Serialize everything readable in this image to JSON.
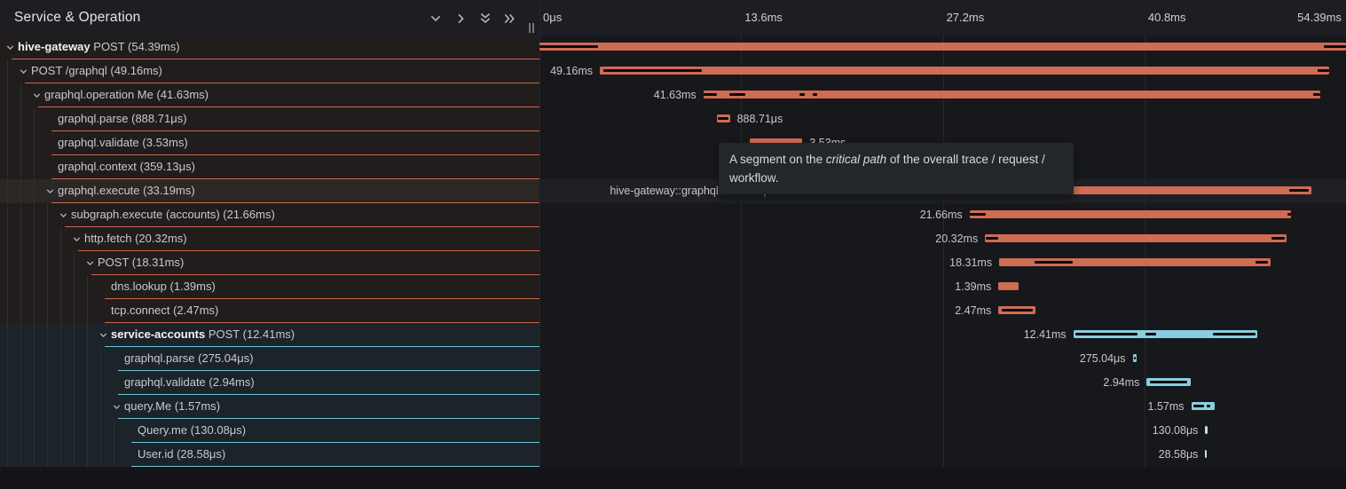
{
  "header": {
    "title": "Service & Operation",
    "buttons": [
      {
        "name": "collapse-one-icon",
        "glyph": "chevron-down"
      },
      {
        "name": "expand-one-icon",
        "glyph": "chevron-right"
      },
      {
        "name": "collapse-all-icon",
        "glyph": "double-chevron-down"
      },
      {
        "name": "expand-all-icon",
        "glyph": "double-chevron-right"
      }
    ]
  },
  "axis": {
    "total_ms": 54.39,
    "ticks": [
      {
        "label": "0μs",
        "ms": 0
      },
      {
        "label": "13.6ms",
        "ms": 13.6
      },
      {
        "label": "27.2ms",
        "ms": 27.2
      },
      {
        "label": "40.8ms",
        "ms": 40.8
      },
      {
        "label": "54.39ms",
        "ms": 54.39,
        "align": "right"
      }
    ]
  },
  "tooltip": {
    "before": "A segment on the ",
    "em": "critical path",
    "after": " of the overall trace / request / workflow."
  },
  "colors": {
    "bar_orange": "#d06b54",
    "bar_blue": "#8acde1",
    "tick_blue": "#b9e2ef",
    "border_orange": "#c9674f",
    "border_blue": "#6fc2da",
    "row_orange_bg": "#201d1c",
    "row_blue_bg": "#1c2329",
    "row_highlight_left_bg": "#2b2724",
    "row_highlight_right_bg": "#1e2025",
    "critical": "#0a0a0a",
    "guide": "#2d2e33",
    "icon": "#b5b7bd",
    "chevron": "#a8aab0"
  },
  "rows": [
    {
      "service": "hive-gateway",
      "name": "POST",
      "duration": "(54.39ms)",
      "depth": 0,
      "expandable": true,
      "theme": "orange",
      "bar": {
        "start_ms": 0,
        "duration_ms": 54.39,
        "label": "",
        "label_side": "none",
        "critical": [
          [
            0,
            0.073
          ],
          [
            0.973,
            1
          ]
        ]
      }
    },
    {
      "service": "",
      "name": "POST /graphql",
      "duration": "(49.16ms)",
      "depth": 1,
      "expandable": true,
      "theme": "orange",
      "bar": {
        "start_ms": 4.07,
        "duration_ms": 49.16,
        "label": "49.16ms",
        "label_side": "left",
        "critical": [
          [
            0.005,
            0.14
          ],
          [
            0.985,
            1
          ]
        ]
      }
    },
    {
      "service": "",
      "name": "graphql.operation Me",
      "duration": "(41.63ms)",
      "depth": 2,
      "expandable": true,
      "theme": "orange",
      "bar": {
        "start_ms": 11.05,
        "duration_ms": 41.63,
        "label": "41.63ms",
        "label_side": "left",
        "critical": [
          [
            0,
            0.022
          ],
          [
            0.042,
            0.068
          ],
          [
            0.155,
            0.165
          ],
          [
            0.177,
            0.185
          ],
          [
            0.988,
            1
          ]
        ]
      }
    },
    {
      "service": "",
      "name": "graphql.parse",
      "duration": "(888.71μs)",
      "depth": 3,
      "expandable": false,
      "theme": "orange",
      "bar": {
        "start_ms": 11.95,
        "duration_ms": 0.889,
        "label": "888.71μs",
        "label_side": "right",
        "critical": [
          [
            0.12,
            0.88
          ]
        ]
      }
    },
    {
      "service": "",
      "name": "graphql.validate",
      "duration": "(3.53ms)",
      "depth": 3,
      "expandable": false,
      "theme": "orange",
      "bar": {
        "start_ms": 14.2,
        "duration_ms": 3.53,
        "label": "3.53ms",
        "label_side": "right",
        "critical": []
      }
    },
    {
      "service": "",
      "name": "graphql.context",
      "duration": "(359.13μs)",
      "depth": 3,
      "expandable": false,
      "theme": "orange",
      "bar": {
        "start_ms": 17.73,
        "duration_ms": 0.359,
        "label": "359.13μs",
        "label_side": "right",
        "critical": []
      }
    },
    {
      "service": "",
      "name": "graphql.execute",
      "duration": "(33.19ms)",
      "depth": 3,
      "expandable": true,
      "theme": "orange",
      "highlighted": true,
      "bar": {
        "start_ms": 18.85,
        "duration_ms": 33.19,
        "label": "hive-gateway::graphql.execute | 33.19ms",
        "label_side": "left",
        "critical": [
          [
            0,
            0.3
          ],
          [
            0.955,
            0.995
          ]
        ]
      }
    },
    {
      "service": "",
      "name": "subgraph.execute (accounts)",
      "duration": "(21.66ms)",
      "depth": 4,
      "expandable": true,
      "theme": "orange",
      "bar": {
        "start_ms": 29.0,
        "duration_ms": 21.66,
        "label": "21.66ms",
        "label_side": "left",
        "critical": [
          [
            0.002,
            0.05
          ],
          [
            0.99,
            1
          ]
        ]
      }
    },
    {
      "service": "",
      "name": "http.fetch",
      "duration": "(20.32ms)",
      "depth": 5,
      "expandable": true,
      "theme": "orange",
      "bar": {
        "start_ms": 30.05,
        "duration_ms": 20.32,
        "label": "20.32ms",
        "label_side": "left",
        "critical": [
          [
            0.002,
            0.045
          ],
          [
            0.95,
            0.995
          ]
        ]
      }
    },
    {
      "service": "",
      "name": "POST",
      "duration": "(18.31ms)",
      "depth": 6,
      "expandable": true,
      "theme": "orange",
      "bar": {
        "start_ms": 31.0,
        "duration_ms": 18.31,
        "label": "18.31ms",
        "label_side": "left",
        "critical": [
          [
            0.13,
            0.27
          ],
          [
            0.945,
            0.99
          ]
        ]
      }
    },
    {
      "service": "",
      "name": "dns.lookup",
      "duration": "(1.39ms)",
      "depth": 7,
      "expandable": false,
      "theme": "orange",
      "bar": {
        "start_ms": 30.95,
        "duration_ms": 1.39,
        "label": "1.39ms",
        "label_side": "left",
        "critical": []
      }
    },
    {
      "service": "",
      "name": "tcp.connect",
      "duration": "(2.47ms)",
      "depth": 7,
      "expandable": false,
      "theme": "orange",
      "bar": {
        "start_ms": 30.95,
        "duration_ms": 2.47,
        "label": "2.47ms",
        "label_side": "left",
        "critical": [
          [
            0.08,
            0.95
          ]
        ]
      }
    },
    {
      "service": "service-accounts",
      "name": "POST",
      "duration": "(12.41ms)",
      "depth": 7,
      "expandable": true,
      "theme": "blue",
      "bar": {
        "start_ms": 36.0,
        "duration_ms": 12.41,
        "label": "12.41ms",
        "label_side": "left",
        "critical": [
          [
            0.01,
            0.35
          ],
          [
            0.39,
            0.45
          ],
          [
            0.76,
            0.99
          ]
        ]
      }
    },
    {
      "service": "",
      "name": "graphql.parse",
      "duration": "(275.04μs)",
      "depth": 8,
      "expandable": false,
      "theme": "blue",
      "bar": {
        "start_ms": 40.0,
        "duration_ms": 0.275,
        "label": "275.04μs",
        "label_side": "left",
        "critical": [
          [
            0.3,
            0.7
          ]
        ]
      }
    },
    {
      "service": "",
      "name": "graphql.validate",
      "duration": "(2.94ms)",
      "depth": 8,
      "expandable": false,
      "theme": "blue",
      "bar": {
        "start_ms": 40.95,
        "duration_ms": 2.94,
        "label": "2.94ms",
        "label_side": "left",
        "critical": [
          [
            0.07,
            0.93
          ]
        ]
      }
    },
    {
      "service": "",
      "name": "query.Me",
      "duration": "(1.57ms)",
      "depth": 8,
      "expandable": true,
      "theme": "blue",
      "bar": {
        "start_ms": 43.95,
        "duration_ms": 1.57,
        "label": "1.57ms",
        "label_side": "left",
        "critical": [
          [
            0.08,
            0.55
          ],
          [
            0.68,
            0.82
          ]
        ]
      }
    },
    {
      "service": "",
      "name": "Query.me",
      "duration": "(130.08μs)",
      "depth": 9,
      "expandable": false,
      "theme": "blue",
      "bar": {
        "start_ms": 44.9,
        "duration_ms": 0.13,
        "label": "130.08μs",
        "label_side": "left",
        "tick": true,
        "critical": []
      }
    },
    {
      "service": "",
      "name": "User.id",
      "duration": "(28.58μs)",
      "depth": 9,
      "expandable": false,
      "theme": "blue",
      "bar": {
        "start_ms": 44.9,
        "duration_ms": 0.0286,
        "label": "28.58μs",
        "label_side": "left",
        "tick": true,
        "critical": []
      }
    }
  ]
}
